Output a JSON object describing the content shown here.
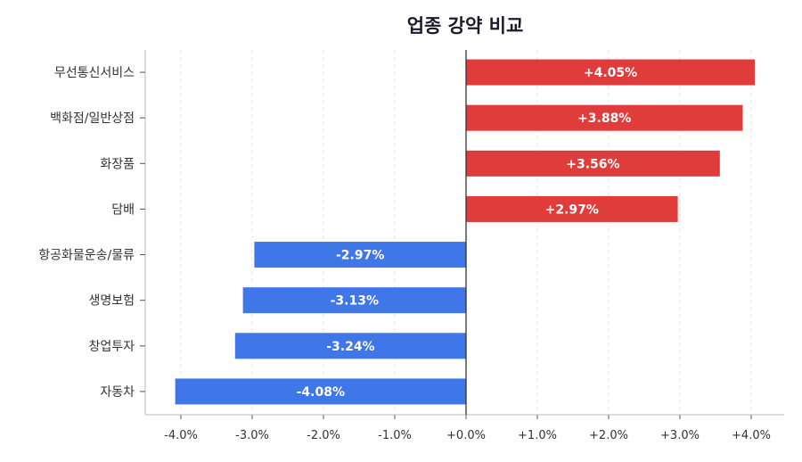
{
  "chart_data": {
    "type": "bar",
    "orientation": "horizontal",
    "title": "업종 강약 비교",
    "categories": [
      "무선통신서비스",
      "백화점/일반상점",
      "화장품",
      "담배",
      "항공화물운송/물류",
      "생명보험",
      "창업투자",
      "자동차"
    ],
    "values": [
      4.05,
      3.88,
      3.56,
      2.97,
      -2.97,
      -3.13,
      -3.24,
      -4.08
    ],
    "data_labels": [
      "+4.05%",
      "+3.88%",
      "+3.56%",
      "+2.97%",
      "-2.97%",
      "-3.13%",
      "-3.24%",
      "-4.08%"
    ],
    "xlim": [
      -4.5,
      4.45
    ],
    "xticks": [
      -4,
      -3,
      -2,
      -1,
      0,
      1,
      2,
      3,
      4
    ],
    "xtick_labels": [
      "-4.0%",
      "-3.0%",
      "-2.0%",
      "-1.0%",
      "+0.0%",
      "+1.0%",
      "+2.0%",
      "+3.0%",
      "+4.0%"
    ],
    "xlabel": "",
    "ylabel": "",
    "grid": "vertical dashed",
    "colors": {
      "positive": "#e03c3c",
      "negative": "#3f76e8",
      "zero_line": "#333333"
    }
  }
}
